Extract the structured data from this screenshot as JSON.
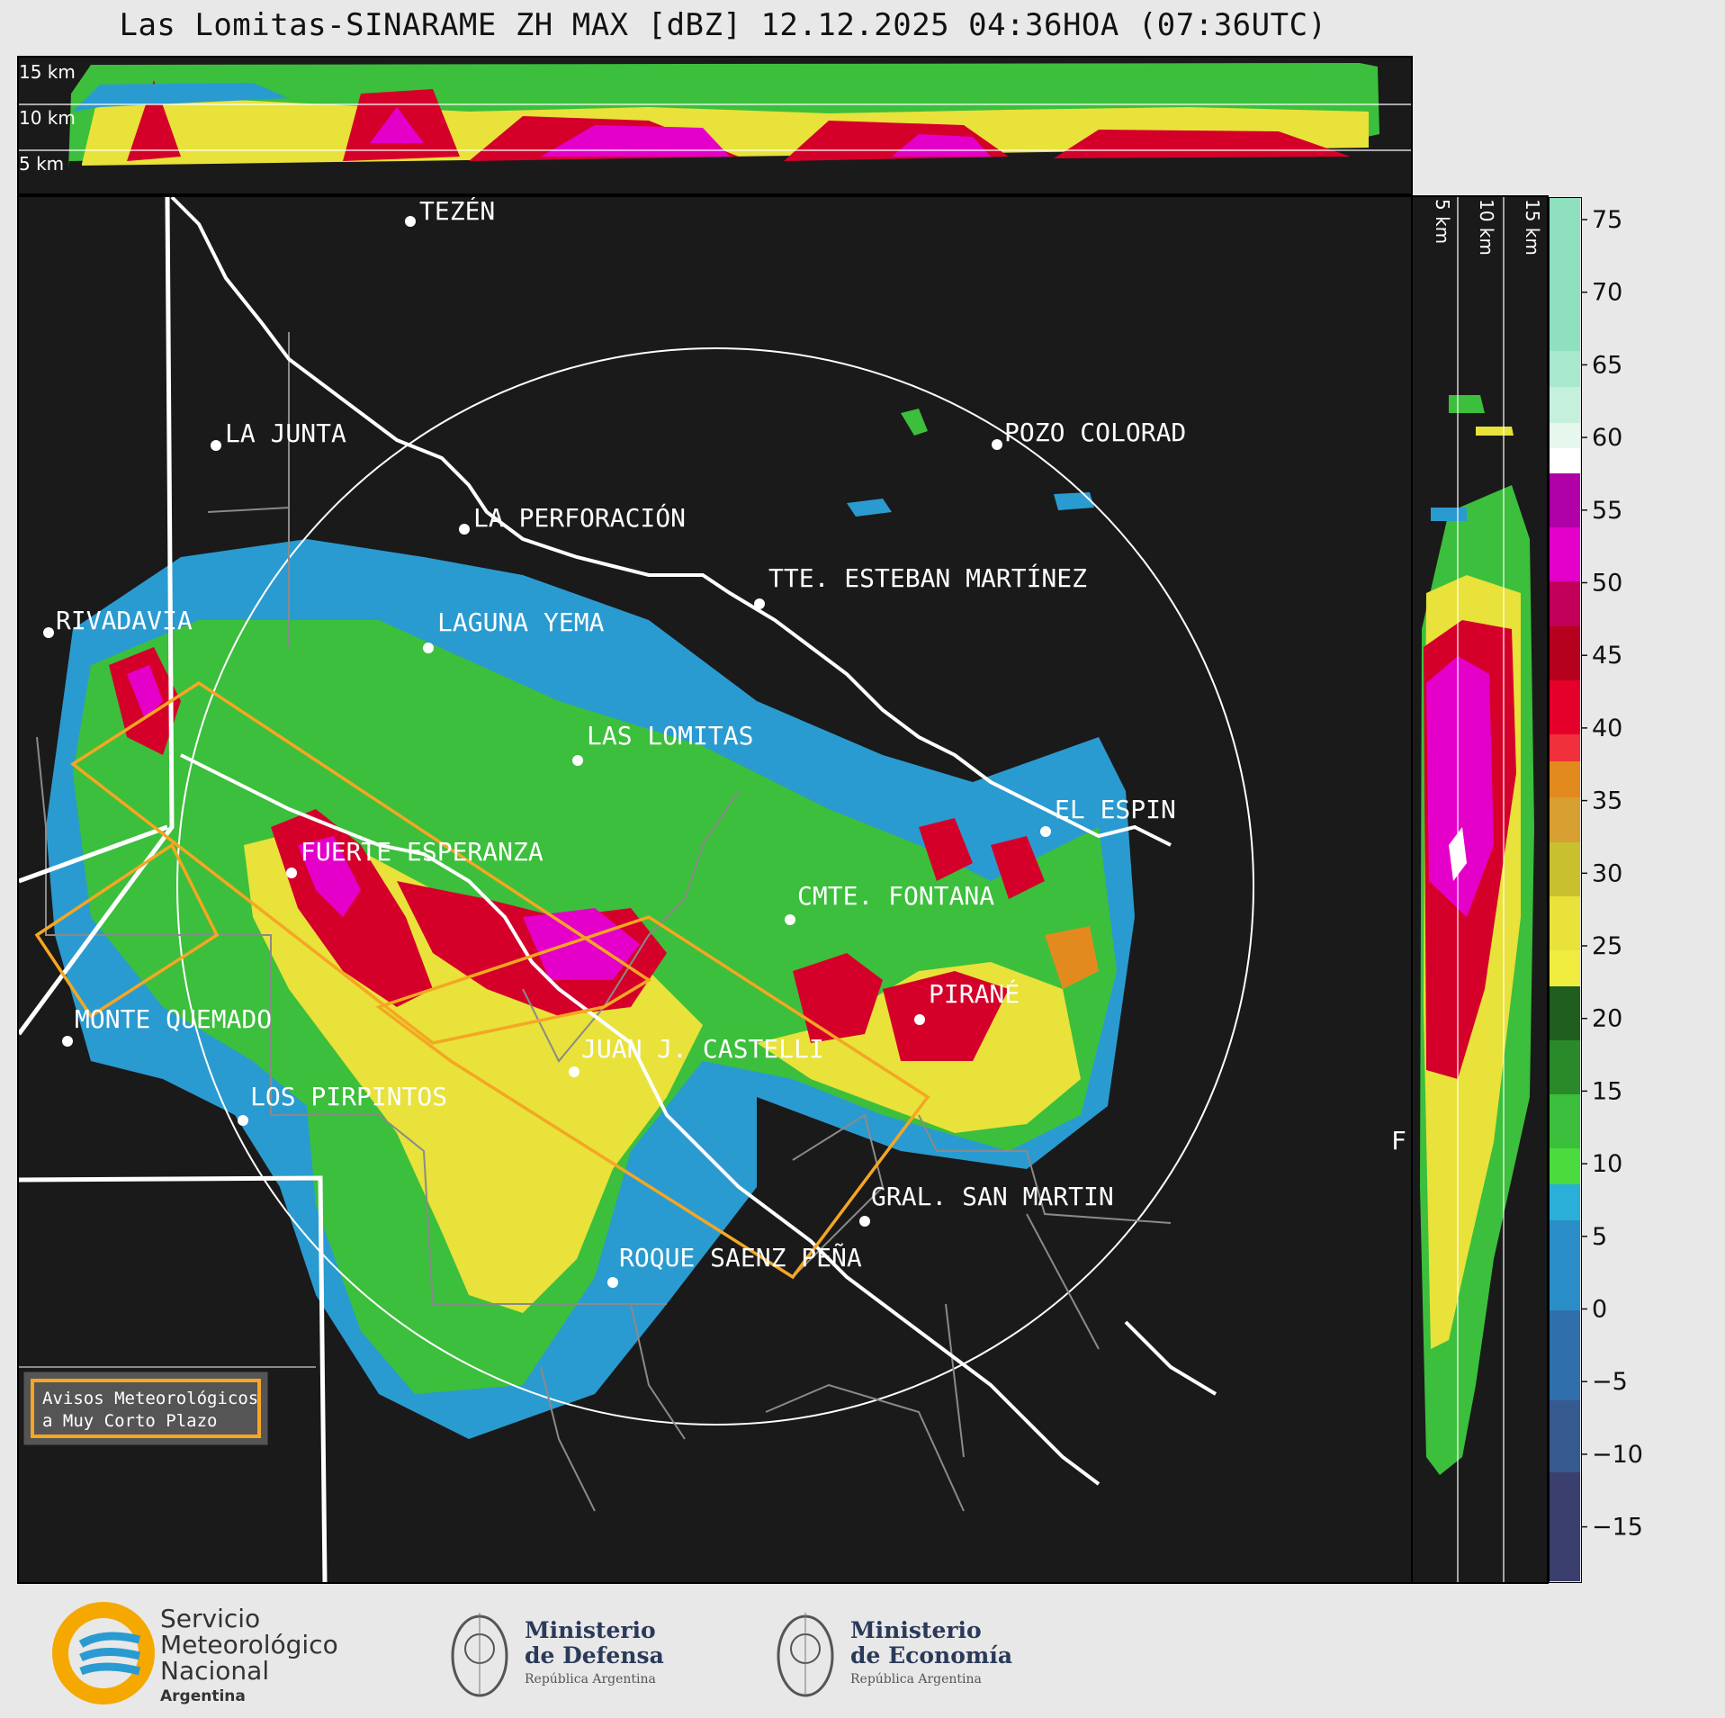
{
  "title": "Las Lomitas-SINARAME ZH MAX [dBZ] 12.12.2025 04:36HOA (07:36UTC)",
  "top_profile": {
    "height_labels": [
      "15 km",
      "10 km",
      "5 km"
    ]
  },
  "side_profile": {
    "height_labels": [
      "5 km",
      "10 km",
      "15 km"
    ]
  },
  "places": [
    {
      "name": "TEZÉN"
    },
    {
      "name": "LA JUNTA"
    },
    {
      "name": "POZO COLORAD"
    },
    {
      "name": "LA PERFORACIÓN"
    },
    {
      "name": "TTE. ESTEBAN MARTÍNEZ"
    },
    {
      "name": "RIVADAVIA"
    },
    {
      "name": "LAGUNA YEMA"
    },
    {
      "name": "LAS LOMITAS"
    },
    {
      "name": "EL ESPIN"
    },
    {
      "name": "FUERTE ESPERANZA"
    },
    {
      "name": "CMTE. FONTANA"
    },
    {
      "name": "PIRANÉ"
    },
    {
      "name": "MONTE QUEMADO"
    },
    {
      "name": "JUAN J. CASTELLI"
    },
    {
      "name": "LOS PIRPINTOS"
    },
    {
      "name": "GRAL. SAN MARTIN"
    },
    {
      "name": "ROQUE SAENZ PEÑA"
    },
    {
      "name": "F"
    }
  ],
  "legend_box": {
    "line1": "Avisos Meteorológicos",
    "line2": "a Muy Corto Plazo",
    "border_color": "#f5a623"
  },
  "colorbar": {
    "unit": "dBZ",
    "ticks": [
      "75",
      "70",
      "65",
      "60",
      "55",
      "50",
      "45",
      "40",
      "35",
      "30",
      "25",
      "20",
      "15",
      "10",
      "5",
      "0",
      "−5",
      "−10",
      "−15"
    ],
    "range": [
      -20,
      77
    ],
    "colors": {
      "range_-20_-10": "#3b3f6e",
      "range_-10_0": "#3a5d8f",
      "range_0_10": "#2f6fab",
      "range_10_18": "#2a9bd0",
      "range_18_30": "#3cbf3c",
      "range_30_40": "#e8e23a",
      "range_40_45": "#e38a1e",
      "range_45_52": "#d4002a",
      "range_52_58": "#e400c8",
      "range_58_60": "#ffffff",
      "range_60_77": "#8fe0bf"
    }
  },
  "logos": {
    "smn": {
      "line1": "Servicio",
      "line2": "Meteorológico",
      "line3": "Nacional",
      "line4": "Argentina"
    },
    "defensa": {
      "line1": "Ministerio",
      "line2": "de Defensa",
      "line3": "República Argentina"
    },
    "economia": {
      "line1": "Ministerio",
      "line2": "de Economía",
      "line3": "República Argentina"
    }
  }
}
